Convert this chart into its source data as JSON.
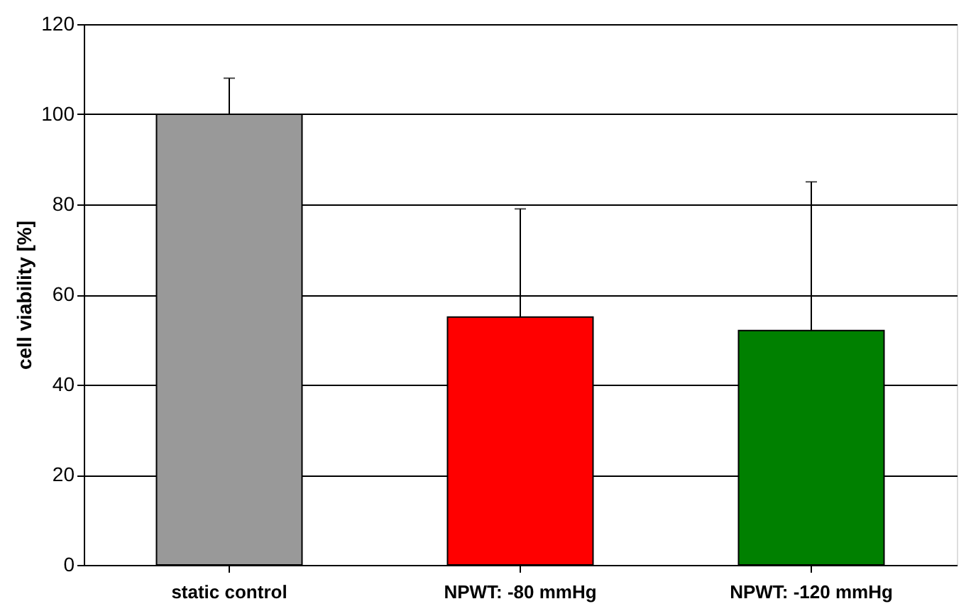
{
  "chart_data": {
    "type": "bar",
    "ylabel": "cell viability [%]",
    "categories": [
      "static control",
      "NPWT: -80 mmHg",
      "NPWT: -120 mmHg"
    ],
    "values": [
      100,
      55,
      52
    ],
    "colors": [
      "#999999",
      "#ff0000",
      "#008000"
    ],
    "errors": [
      [
        100,
        108
      ],
      [
        55,
        79
      ],
      [
        52,
        85
      ]
    ],
    "ylim": [
      0,
      120
    ],
    "yticks": [
      0,
      20,
      40,
      60,
      80,
      100,
      120
    ],
    "grid": "y"
  }
}
